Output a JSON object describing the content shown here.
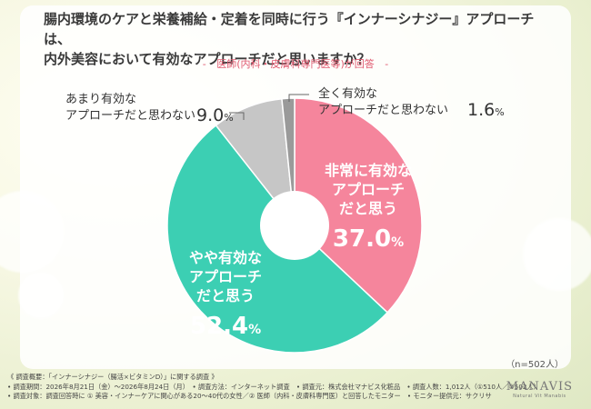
{
  "title_lines": [
    "腸内環境のケアと栄養補給・定着を同時に行う『インナーシナジー』アプローチは、",
    "内外美容において有効なアプローチだと思いますか？"
  ],
  "subtitle": "医師(内科・皮膚科専門医等)が回答",
  "subtitle_dash": "-",
  "n_note": "（n=502人）",
  "colors": {
    "pink": "#f5859c",
    "teal": "#3ccfb3",
    "gray_light": "#c6c6c6",
    "gray_dark": "#9a9a9a"
  },
  "chart_data": {
    "type": "pie",
    "donut": true,
    "slices": [
      {
        "label": "非常に有効なアプローチだと思う",
        "value": 37.0,
        "color": "#f5859c"
      },
      {
        "label": "やや有効なアプローチだと思う",
        "value": 52.4,
        "color": "#3ccfb3"
      },
      {
        "label": "あまり有効なアプローチだと思わない",
        "value": 9.0,
        "color": "#c6c6c6"
      },
      {
        "label": "全く有効なアプローチだと思わない",
        "value": 1.6,
        "color": "#9a9a9a"
      }
    ]
  },
  "labels": {
    "very": {
      "lines": [
        "非常に有効な",
        "アプローチ",
        "だと思う"
      ],
      "pct_num": "37.0",
      "pct_sign": "%"
    },
    "somewhat": {
      "lines": [
        "やや有効な",
        "アプローチ",
        "だと思う"
      ],
      "pct_num": "52.4",
      "pct_sign": "%"
    },
    "not_much": {
      "lines": [
        "あまり有効な",
        "アプローチだと思わない"
      ],
      "pct_num": "9.0",
      "pct_sign": "%"
    },
    "not_at_all": {
      "lines": [
        "全く有効な",
        "アプローチだと思わない"
      ],
      "pct_num": "1.6",
      "pct_sign": "%"
    }
  },
  "footer": [
    "《 調査概要：「インナーシナジー（腸活×ビタミンD）」に関する調査 》",
    "• 調査期間：2026年8月21日（金）〜2026年8月24日（月）　• 調査方法：インターネット調査　• 調査元：株式会社マナビス化粧品　• 調査人数：1,012人（①510人／②502人）",
    "• 調査対象：調査回答時に ① 美容・インナーケアに関心がある20〜40代の女性／② 医師（内科・皮膚科専門医）と回答したモニター　• モニター提供元：サクリサ"
  ],
  "logo": {
    "main": "MANAVIS",
    "sub": "Natural Vit Manabis"
  }
}
